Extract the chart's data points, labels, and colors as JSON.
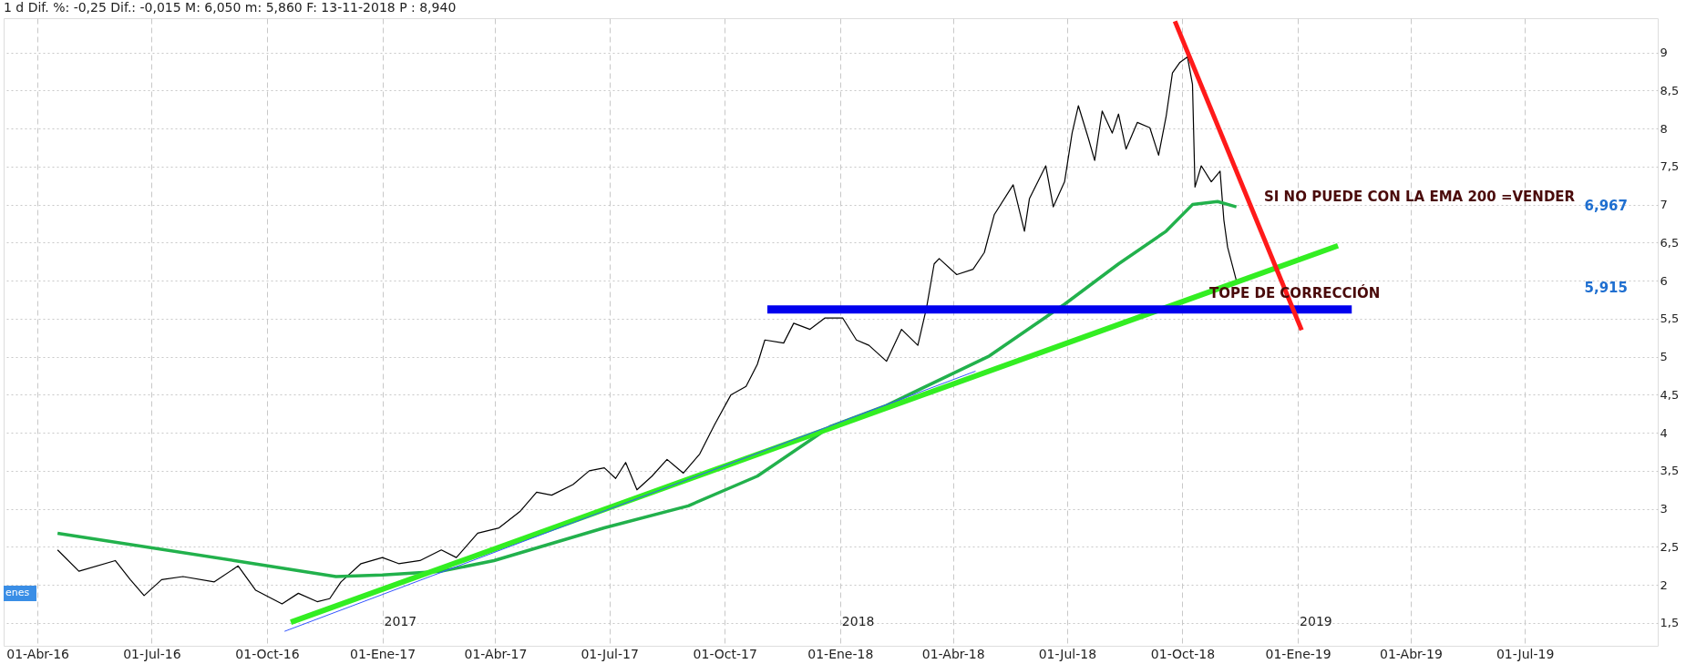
{
  "chart_data": {
    "type": "line",
    "title": "1 d Dif. %: -0,25 Dif.: -0,015 M: 6,050 m: 5,860 F: 13-11-2018 P : 8,940",
    "xlim": [
      "2016-03-05",
      "2019-10-15"
    ],
    "ylim": [
      1.2,
      9.45
    ],
    "yticks": [
      {
        "value": 1.5,
        "label": "1,5"
      },
      2,
      {
        "value": 2.5,
        "label": "2,5"
      },
      3,
      {
        "value": 3.5,
        "label": "3,5"
      },
      4,
      {
        "value": 4.5,
        "label": "4,5"
      },
      5,
      {
        "value": 5.5,
        "label": "5,5"
      },
      6,
      {
        "value": 6.5,
        "label": "6,5"
      },
      7,
      {
        "value": 7.5,
        "label": "7,5"
      },
      8,
      {
        "value": 8.5,
        "label": "8,5"
      },
      9
    ],
    "xticks": [
      {
        "value": "2016-04-01",
        "label": "01-Abr-16"
      },
      {
        "value": "2016-07-01",
        "label": "01-Jul-16"
      },
      {
        "value": "2016-10-01",
        "label": "01-Oct-16"
      },
      {
        "value": "2017-01-01",
        "label": "01-Ene-17"
      },
      {
        "value": "2017-04-01",
        "label": "01-Abr-17"
      },
      {
        "value": "2017-07-01",
        "label": "01-Jul-17"
      },
      {
        "value": "2017-10-01",
        "label": "01-Oct-17"
      },
      {
        "value": "2018-01-01",
        "label": "01-Ene-18"
      },
      {
        "value": "2018-04-01",
        "label": "01-Abr-18"
      },
      {
        "value": "2018-07-01",
        "label": "01-Jul-18"
      },
      {
        "value": "2018-10-01",
        "label": "01-Oct-18"
      },
      {
        "value": "2019-01-01",
        "label": "01-Ene-19"
      },
      {
        "value": "2019-04-01",
        "label": "01-Abr-19"
      },
      {
        "value": "2019-07-01",
        "label": "01-Jul-19"
      }
    ],
    "grid": true,
    "series": [
      {
        "color": "#000000",
        "x": [
          "2016-04-17",
          "2016-05-04",
          "2016-06-02",
          "2016-06-14",
          "2016-06-25",
          "2016-07-09",
          "2016-07-26",
          "2016-08-20",
          "2016-09-08",
          "2016-09-22",
          "2016-10-13",
          "2016-10-26",
          "2016-11-10",
          "2016-11-20",
          "2016-11-29",
          "2016-12-15",
          "2017-01-01",
          "2017-01-14",
          "2017-01-31",
          "2017-02-17",
          "2017-03-01",
          "2017-03-18",
          "2017-04-04",
          "2017-04-21",
          "2017-05-04",
          "2017-05-16",
          "2017-06-02",
          "2017-06-15",
          "2017-06-27",
          "2017-07-06",
          "2017-07-14",
          "2017-07-23",
          "2017-08-04",
          "2017-08-16",
          "2017-08-29",
          "2017-09-11",
          "2017-09-23",
          "2017-10-06",
          "2017-10-18",
          "2017-10-27",
          "2017-11-02",
          "2017-11-17",
          "2017-11-25",
          "2017-12-08",
          "2017-12-20",
          "2018-01-03",
          "2018-01-14",
          "2018-01-24",
          "2018-02-07",
          "2018-02-11",
          "2018-02-19",
          "2018-03-04",
          "2018-03-11",
          "2018-03-17",
          "2018-03-21",
          "2018-04-04",
          "2018-04-17",
          "2018-04-26",
          "2018-05-04",
          "2018-05-19",
          "2018-05-28",
          "2018-06-01",
          "2018-06-14",
          "2018-06-20",
          "2018-06-29",
          "2018-07-05",
          "2018-07-10",
          "2018-07-18",
          "2018-07-23",
          "2018-07-29",
          "2018-08-06",
          "2018-08-11",
          "2018-08-17",
          "2018-08-26",
          "2018-09-05",
          "2018-09-12",
          "2018-09-18",
          "2018-09-23",
          "2018-09-29",
          "2018-10-05",
          "2018-10-09",
          "2018-10-11",
          "2018-10-16",
          "2018-10-24",
          "2018-10-31",
          "2018-11-03",
          "2018-11-06",
          "2018-11-13"
        ],
        "values": [
          2.46,
          2.18,
          2.32,
          2.07,
          1.86,
          2.07,
          2.11,
          2.04,
          2.25,
          1.93,
          1.75,
          1.89,
          1.78,
          1.82,
          2.04,
          2.28,
          2.36,
          2.28,
          2.32,
          2.46,
          2.36,
          2.68,
          2.75,
          2.97,
          3.22,
          3.18,
          3.32,
          3.5,
          3.54,
          3.4,
          3.61,
          3.25,
          3.43,
          3.65,
          3.47,
          3.72,
          4.11,
          4.5,
          4.61,
          4.9,
          5.22,
          5.18,
          5.44,
          5.36,
          5.51,
          5.51,
          5.22,
          5.15,
          4.94,
          5.08,
          5.36,
          5.15,
          5.65,
          6.22,
          6.29,
          6.08,
          6.15,
          6.37,
          6.87,
          7.26,
          6.65,
          7.08,
          7.51,
          6.97,
          7.3,
          7.94,
          8.3,
          7.87,
          7.58,
          8.23,
          7.94,
          8.19,
          7.73,
          8.08,
          8.01,
          7.65,
          8.16,
          8.73,
          8.87,
          8.94,
          8.58,
          7.23,
          7.51,
          7.3,
          7.44,
          6.8,
          6.44,
          6.0
        ]
      },
      {
        "color": "#22b14c",
        "x": [
          "2016-04-17",
          "2016-09-05",
          "2016-11-25",
          "2017-01-01",
          "2017-02-17",
          "2017-03-31",
          "2017-06-27",
          "2017-09-02",
          "2017-10-27",
          "2017-12-24",
          "2018-02-07",
          "2018-04-30",
          "2018-06-29",
          "2018-08-11",
          "2018-09-18",
          "2018-10-09",
          "2018-10-29",
          "2018-11-13"
        ],
        "values": [
          2.68,
          2.32,
          2.11,
          2.13,
          2.18,
          2.32,
          2.75,
          3.04,
          3.43,
          4.08,
          4.36,
          5.01,
          5.69,
          6.22,
          6.65,
          7.0,
          7.04,
          6.97
        ]
      },
      {
        "color": "#33ee22",
        "x": [
          "2016-10-20",
          "2019-02-02"
        ],
        "values": [
          1.51,
          6.46
        ]
      },
      {
        "color": "#3355ff",
        "x": [
          "2016-10-15",
          "2018-04-19"
        ],
        "values": [
          1.39,
          4.81
        ]
      },
      {
        "color": "#0000ee",
        "x": [
          "2017-11-04",
          "2019-02-13"
        ],
        "values": [
          5.62,
          5.62
        ]
      },
      {
        "color": "#ff1a1a",
        "x": [
          "2018-09-25",
          "2019-01-04"
        ],
        "values": [
          9.41,
          5.35
        ]
      }
    ],
    "annotations": [
      "SI NO PUEDE CON LA EMA 200 =VENDER",
      "TOPE DE CORRECCIÓN",
      "6,967",
      "5,915",
      "2017",
      "2018",
      "2019",
      "enes"
    ]
  }
}
